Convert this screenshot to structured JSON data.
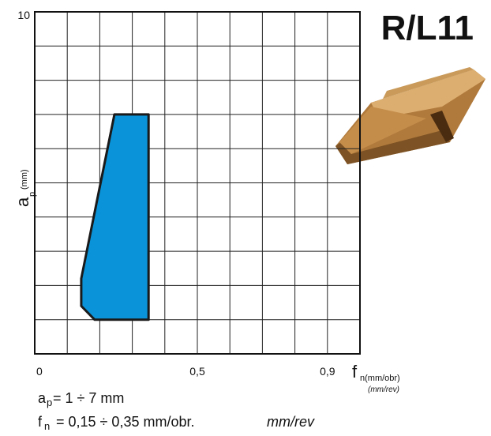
{
  "chart_data": {
    "type": "polygon",
    "title": "R/L11",
    "x_label": {
      "main": "f",
      "sub": "n(mm/obr)",
      "alt": "(mm/rev)"
    },
    "y_label": {
      "main": "a",
      "sub": "p",
      "unit": "(mm)"
    },
    "series": [
      {
        "color": "#0a93d8",
        "x": [
          0.245,
          0.35,
          0.35,
          0.184,
          0.143,
          0.143
        ],
        "values": [
          7,
          7,
          1,
          1,
          1.4,
          2.2
        ]
      }
    ],
    "xlim": [
      0,
      1
    ],
    "ylim": [
      0,
      10
    ],
    "xticks": [
      0,
      {
        "value": 0.5,
        "label": "0,5"
      },
      {
        "value": 0.9,
        "label": "0,9"
      }
    ],
    "yticks": [
      10
    ],
    "xgrid": [
      0,
      0.1,
      0.2,
      0.3,
      0.4,
      0.5,
      0.6,
      0.7,
      0.8,
      0.9,
      1
    ],
    "ygrid": [
      0,
      1,
      2,
      3,
      4,
      5,
      6,
      7,
      8,
      9,
      10
    ],
    "annotations": [
      {
        "parts": [
          "a",
          "p",
          " = 1 ÷ 7 mm"
        ]
      },
      {
        "parts": [
          "f",
          "n",
          " = 0,15 ÷ 0,35 mm/obr. ",
          "mm/rev"
        ]
      }
    ]
  }
}
